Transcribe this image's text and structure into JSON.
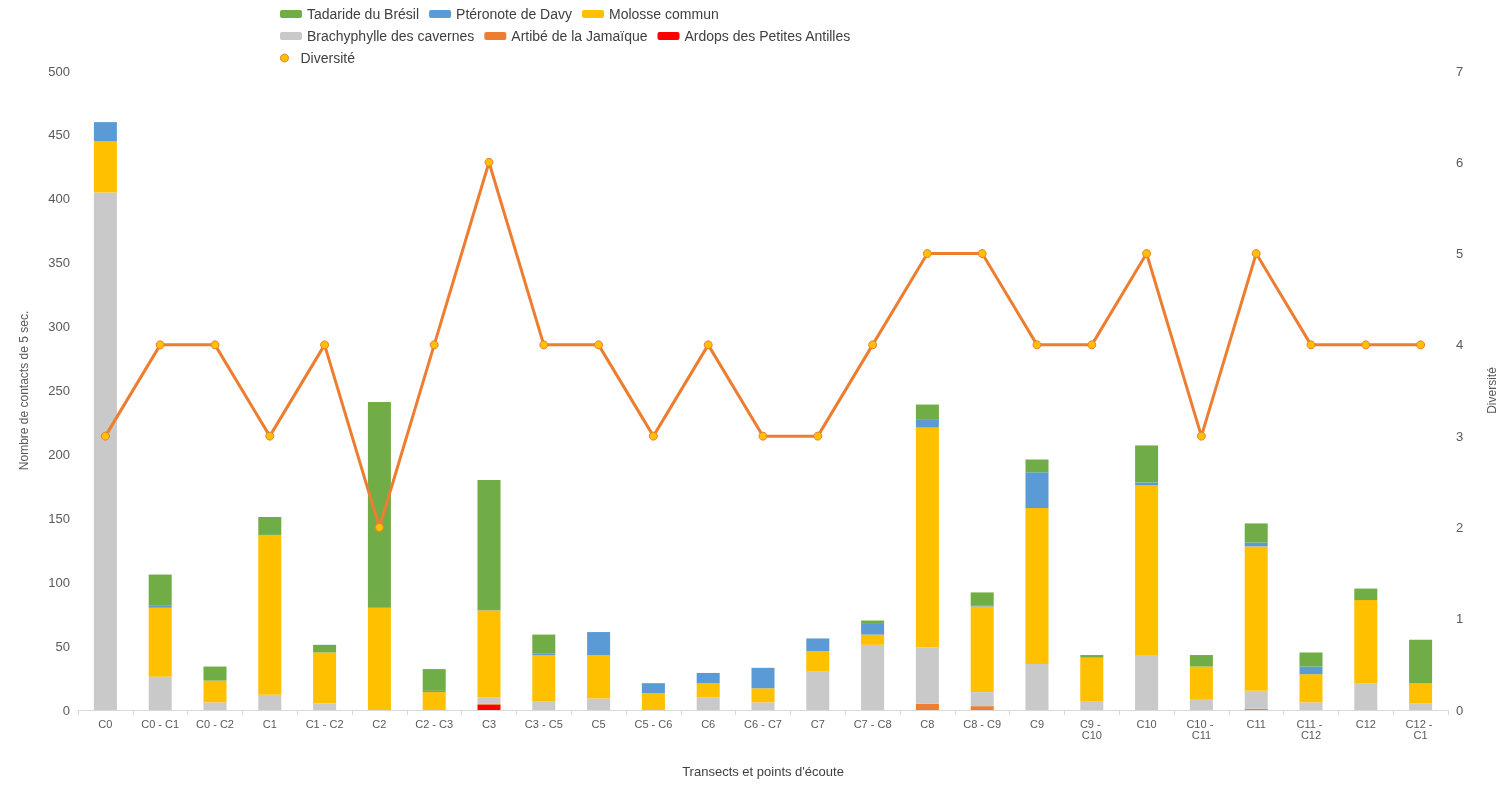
{
  "chart_data": {
    "type": "bar",
    "stacked": true,
    "categories": [
      "C0",
      "C0 - C1",
      "C0 - C2",
      "C1",
      "C1 - C2",
      "C2",
      "C2 - C3",
      "C3",
      "C3 - C5",
      "C5",
      "C5 - C6",
      "C6",
      "C6 - C7",
      "C7",
      "C7 - C8",
      "C8",
      "C8 - C9",
      "C9",
      "C9 - C10",
      "C10",
      "C10 - C11",
      "C11",
      "C11 - C12",
      "C12",
      "C12 - C1"
    ],
    "xlabel": "Transects et points d'écoute",
    "ylabel": "Nombre de contacts de 5 sec.",
    "y2label": "Diversité",
    "ylim": [
      0,
      500
    ],
    "yticks": [
      0,
      50,
      100,
      150,
      200,
      250,
      300,
      350,
      400,
      450,
      500
    ],
    "y2lim": [
      0,
      7
    ],
    "y2ticks": [
      0,
      1,
      2,
      3,
      4,
      5,
      6,
      7
    ],
    "grid": false,
    "legend": "top",
    "series": [
      {
        "name": "Ardops des Petites Antilles",
        "color": "#ff0000",
        "values": [
          0,
          0,
          0,
          0,
          0,
          0,
          0,
          4,
          0,
          0,
          0,
          0,
          0,
          0,
          0,
          0,
          0,
          0,
          0,
          0,
          0,
          0,
          0,
          0,
          0
        ]
      },
      {
        "name": "Artibé de la Jamaïque",
        "color": "#ed7d31",
        "values": [
          0,
          0,
          0,
          0,
          0,
          0,
          0,
          1,
          0,
          0,
          0,
          0,
          0,
          0,
          0,
          5,
          3,
          0,
          0,
          0,
          0,
          1,
          0,
          0,
          0
        ]
      },
      {
        "name": "Brachyphylle des cavernes",
        "color": "#c9c9c9",
        "values": [
          405,
          26,
          6,
          12,
          5,
          0,
          null,
          5,
          7,
          9,
          null,
          10,
          6,
          30,
          51,
          44,
          11,
          36,
          7,
          43,
          8,
          14,
          6,
          21,
          5
        ]
      },
      {
        "name": "Molosse commun",
        "color": "#ffc000",
        "values": [
          40,
          54,
          17,
          125,
          40,
          80,
          14,
          68,
          36,
          34,
          13,
          11,
          11,
          16,
          8,
          172,
          67,
          122,
          34,
          133,
          26,
          113,
          22,
          65,
          16
        ]
      },
      {
        "name": "Ptéronote de Davy",
        "color": "#5b9bd5",
        "values": [
          15,
          2,
          0,
          0,
          0,
          0,
          1,
          1,
          1,
          18,
          8,
          8,
          16,
          10,
          9,
          6,
          1,
          28,
          0,
          2,
          0,
          3,
          6,
          0,
          0
        ]
      },
      {
        "name": "Tadaride du Brésil",
        "color": "#70ad47",
        "values": [
          0,
          24,
          11,
          14,
          6,
          161,
          17,
          101,
          15,
          0,
          0,
          0,
          0,
          0,
          2,
          12,
          10,
          10,
          2,
          29,
          9,
          15,
          11,
          9,
          34
        ]
      },
      {
        "name": "Diversité",
        "type": "line",
        "axis": "y2",
        "color": "#ed7d31",
        "marker": "circle",
        "values": [
          3,
          4,
          4,
          3,
          4,
          2,
          4,
          6,
          4,
          4,
          3,
          4,
          3,
          3,
          4,
          5,
          5,
          4,
          4,
          5,
          3,
          5,
          4,
          4,
          4
        ]
      }
    ]
  }
}
